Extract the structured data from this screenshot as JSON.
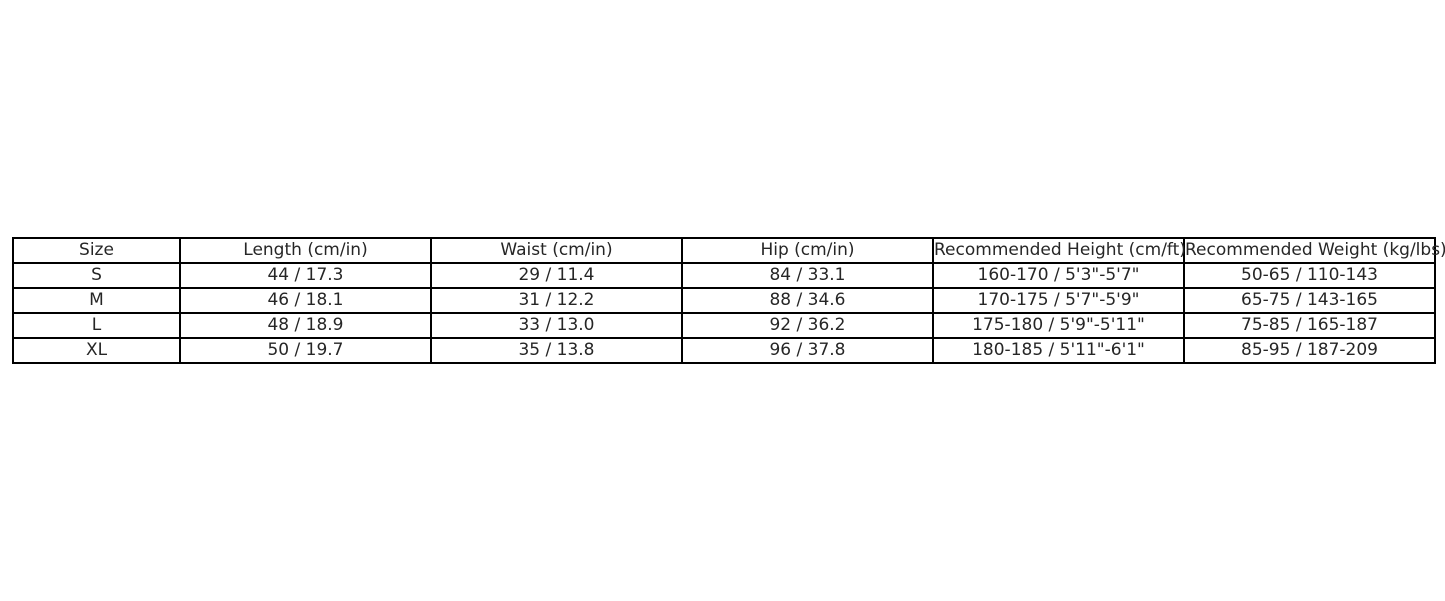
{
  "chart_data": {
    "type": "table",
    "title": "",
    "columns": [
      "Size",
      "Length (cm/in)",
      "Waist (cm/in)",
      "Hip (cm/in)",
      "Recommended Height (cm/ft)",
      "Recommended Weight (kg/lbs)"
    ],
    "rows": [
      [
        "S",
        "44 / 17.3",
        "29 / 11.4",
        "84 / 33.1",
        "160-170 / 5'3\"-5'7\"",
        "50-65 / 110-143"
      ],
      [
        "M",
        "46 / 18.1",
        "31 / 12.2",
        "88 / 34.6",
        "170-175 / 5'7\"-5'9\"",
        "65-75 / 143-165"
      ],
      [
        "L",
        "48 / 18.9",
        "33 / 13.0",
        "92 / 36.2",
        "175-180 / 5'9\"-5'11\"",
        "75-85 / 165-187"
      ],
      [
        "XL",
        "50 / 19.7",
        "35 / 13.8",
        "96 / 37.8",
        "180-185 / 5'11\"-6'1\"",
        "85-95 / 187-209"
      ]
    ],
    "layout": {
      "grid": "all-borders",
      "header_position": "top",
      "text_align": "center"
    },
    "colors": {
      "background": "#ffffff",
      "border": "#000000",
      "text": "#262626"
    }
  }
}
